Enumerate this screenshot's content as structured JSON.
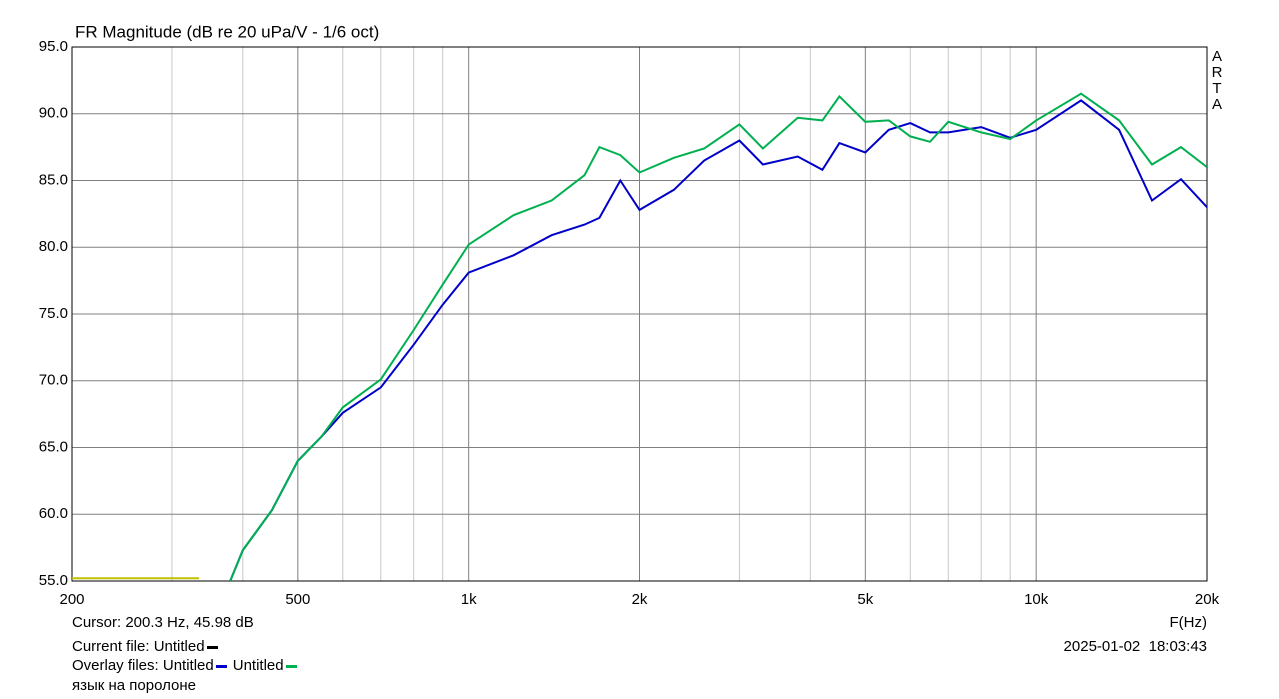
{
  "chart_data": {
    "type": "line",
    "title": "FR Magnitude (dB re 20 uPa/V - 1/6 oct)",
    "xlabel": "F(Hz)",
    "watermark": "ARTA",
    "log_x": true,
    "grid": true,
    "xlim": [
      200,
      20000
    ],
    "ylim": [
      55,
      95
    ],
    "xticks": [
      200,
      500,
      {
        "value": 1000,
        "label": "1k"
      },
      {
        "value": 2000,
        "label": "2k"
      },
      {
        "value": 5000,
        "label": "5k"
      },
      {
        "value": 10000,
        "label": "10k"
      },
      {
        "value": 20000,
        "label": "20k"
      }
    ],
    "xgrid_minor": [
      300,
      400,
      600,
      700,
      800,
      900,
      3000,
      4000,
      6000,
      7000,
      8000,
      9000
    ],
    "yticks": [
      {
        "value": 55,
        "label": "55.0"
      },
      {
        "value": 60,
        "label": "60.0"
      },
      {
        "value": 65,
        "label": "65.0"
      },
      {
        "value": 70,
        "label": "70.0"
      },
      {
        "value": 75,
        "label": "75.0"
      },
      {
        "value": 80,
        "label": "80.0"
      },
      {
        "value": 85,
        "label": "85.0"
      },
      {
        "value": 90,
        "label": "90.0"
      },
      {
        "value": 95,
        "label": "95.0"
      }
    ],
    "series": [
      {
        "name": "Untitled",
        "color": "#0000c8",
        "x": [
          380,
          400,
          450,
          500,
          550,
          600,
          700,
          800,
          900,
          1000,
          1200,
          1400,
          1600,
          1700,
          1850,
          2000,
          2300,
          2600,
          3000,
          3300,
          3800,
          4200,
          4500,
          5000,
          5500,
          6000,
          6500,
          7000,
          8000,
          9000,
          10000,
          12000,
          14000,
          16000,
          18000,
          20000
        ],
        "values": [
          55.0,
          57.3,
          60.3,
          64.0,
          65.8,
          67.6,
          69.5,
          72.7,
          75.7,
          78.1,
          79.4,
          80.9,
          81.7,
          82.2,
          85.0,
          82.8,
          84.3,
          86.5,
          88.0,
          86.2,
          86.8,
          85.8,
          87.8,
          87.1,
          88.8,
          89.3,
          88.6,
          88.6,
          89.0,
          88.2,
          88.8,
          91.0,
          88.8,
          83.5,
          85.1,
          83.0
        ]
      },
      {
        "name": "Untitled",
        "color": "#00b050",
        "x": [
          380,
          400,
          450,
          500,
          550,
          600,
          700,
          800,
          900,
          1000,
          1200,
          1400,
          1600,
          1700,
          1850,
          2000,
          2300,
          2600,
          3000,
          3300,
          3800,
          4200,
          4500,
          5000,
          5500,
          6000,
          6500,
          7000,
          8000,
          9000,
          10000,
          12000,
          14000,
          16000,
          18000,
          20000
        ],
        "values": [
          55.0,
          57.3,
          60.3,
          64.0,
          65.8,
          68.0,
          70.1,
          73.8,
          77.2,
          80.2,
          82.4,
          83.5,
          85.4,
          87.5,
          86.9,
          85.6,
          86.7,
          87.4,
          89.2,
          87.4,
          89.7,
          89.5,
          91.3,
          89.4,
          89.5,
          88.3,
          87.9,
          89.4,
          88.6,
          88.1,
          89.5,
          91.5,
          89.5,
          86.2,
          87.5,
          86.0
        ]
      },
      {
        "name": "Untitled",
        "color": "#c0c000",
        "swatch_color": "#000000",
        "x": [
          200,
          335
        ],
        "values": [
          55.2,
          55.2
        ]
      }
    ],
    "cursor": "Cursor: 200.3 Hz, 45.98 dB",
    "current_label": "Current file:",
    "overlay_label": "Overlay files:",
    "date": "2025-01-02  18:03:43",
    "note": "язык на поролоне"
  }
}
